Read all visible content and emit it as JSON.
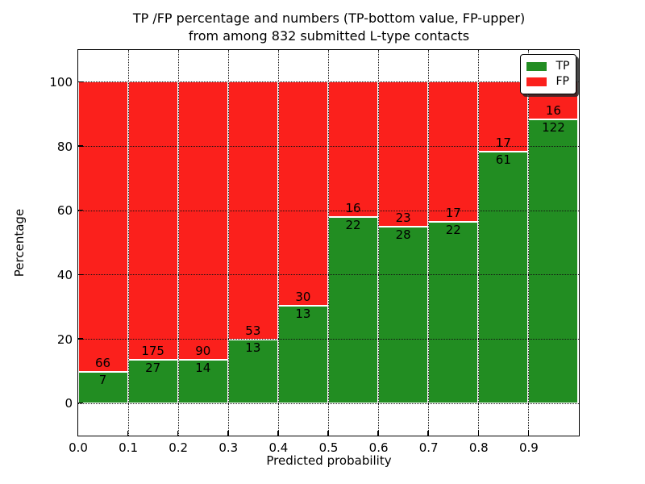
{
  "title": {
    "line1": "TP /FP percentage and numbers (TP-bottom value, FP-upper)",
    "line2": "from among 832 submitted L-type contacts"
  },
  "legend": {
    "position": "upper right",
    "items": [
      {
        "label": "TP",
        "color": "#228d22"
      },
      {
        "label": "FP",
        "color": "#fb201c"
      }
    ]
  },
  "chart_data": {
    "type": "bar",
    "stacked": true,
    "normalized": "each bin scaled to 100%",
    "title": "TP /FP percentage and numbers (TP-bottom value, FP-upper) from among 832 submitted L-type contacts",
    "xlabel": "Predicted probability",
    "ylabel": "Percentage",
    "total_contacts": 832,
    "grid": true,
    "xlim": [
      0.0,
      1.0
    ],
    "ylim": [
      -10,
      110
    ],
    "yticks": [
      0,
      20,
      40,
      60,
      80,
      100
    ],
    "xtick_labels": [
      "0.0",
      "0.1",
      "0.2",
      "0.3",
      "0.4",
      "0.5",
      "0.6",
      "0.7",
      "0.8",
      "0.9"
    ],
    "bin_starts": [
      0.0,
      0.1,
      0.2,
      0.3,
      0.4,
      0.5,
      0.6,
      0.7,
      0.8,
      0.9
    ],
    "bin_width": 0.1,
    "series": [
      {
        "name": "TP",
        "color": "#228d22",
        "values": [
          7,
          27,
          14,
          13,
          13,
          22,
          28,
          22,
          61,
          122
        ]
      },
      {
        "name": "FP",
        "color": "#fb201c",
        "values": [
          66,
          175,
          90,
          53,
          30,
          16,
          23,
          17,
          17,
          16
        ]
      }
    ],
    "tp_percent": [
      9.59,
      13.37,
      13.46,
      19.7,
      30.23,
      57.89,
      54.9,
      56.41,
      78.21,
      88.41
    ]
  }
}
